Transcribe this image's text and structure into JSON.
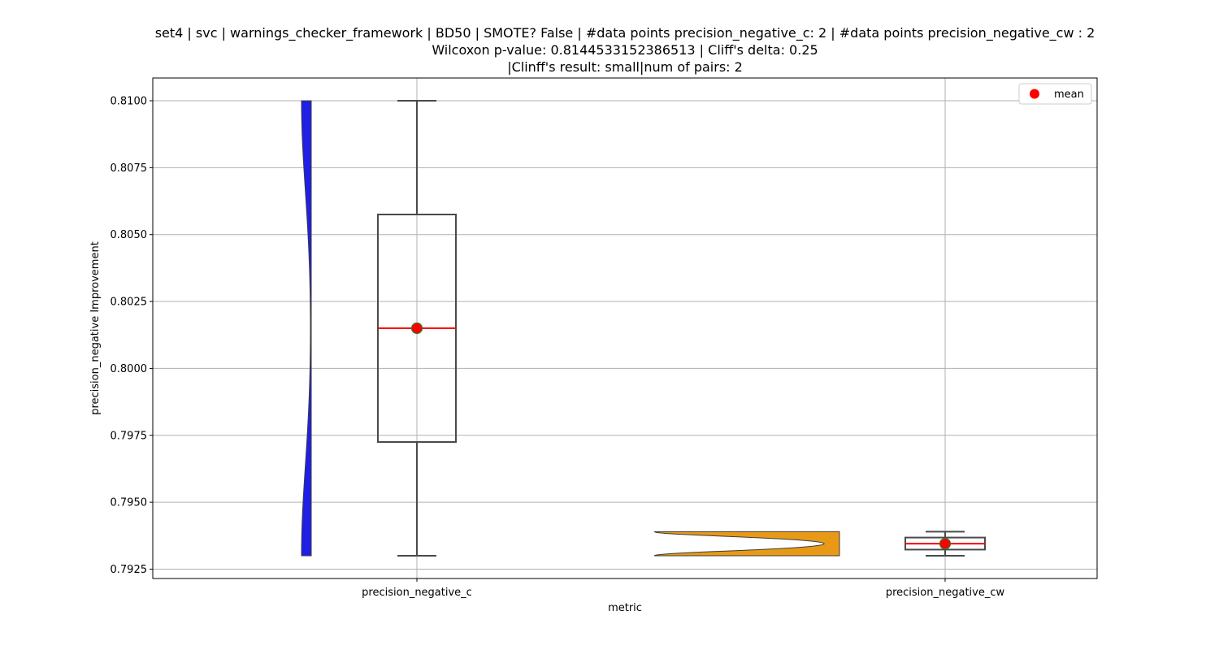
{
  "chart_data": {
    "type": "box-violin",
    "title_lines": [
      "set4 | svc | warnings_checker_framework | BD50 | SMOTE? False | #data points precision_negative_c: 2 | #data points precision_negative_cw : 2",
      "Wilcoxon p-value: 0.8144533152386513 | Cliff's delta: 0.25",
      "|Clinff's result: small|num of pairs: 2"
    ],
    "xlabel": "metric",
    "ylabel": "precision_negative Improvement",
    "categories": [
      "precision_negative_c",
      "precision_negative_cw"
    ],
    "ylim": [
      0.79215,
      0.81085
    ],
    "yticks": [
      0.7925,
      0.795,
      0.7975,
      0.8,
      0.8025,
      0.805,
      0.8075,
      0.81
    ],
    "ytick_labels": [
      "0.7925",
      "0.7950",
      "0.7975",
      "0.8000",
      "0.8025",
      "0.8050",
      "0.8075",
      "0.8100"
    ],
    "grid": true,
    "legend": {
      "position": "top-right",
      "entries": [
        {
          "label": "mean",
          "color": "#ff0000"
        }
      ]
    },
    "series": [
      {
        "category": "precision_negative_c",
        "violin_color": "#1f1fe6",
        "violin_side": "left",
        "values": [
          0.793,
          0.81
        ],
        "box": {
          "whisker_low": 0.793,
          "q1": 0.79725,
          "median": 0.8015,
          "q3": 0.80575,
          "whisker_high": 0.81
        },
        "mean": 0.8015
      },
      {
        "category": "precision_negative_cw",
        "violin_color": "#e89a16",
        "violin_side": "left",
        "values": [
          0.793,
          0.7939
        ],
        "box": {
          "whisker_low": 0.793,
          "q1": 0.79323,
          "median": 0.79345,
          "q3": 0.79368,
          "whisker_high": 0.7939
        },
        "mean": 0.79345
      }
    ],
    "colors": {
      "median_line": "#ff0000",
      "mean_marker": "#ff0000",
      "mean_edge": "#2e7d32",
      "box_edge": "#4a4a4a",
      "grid": "#b0b0b0"
    }
  }
}
